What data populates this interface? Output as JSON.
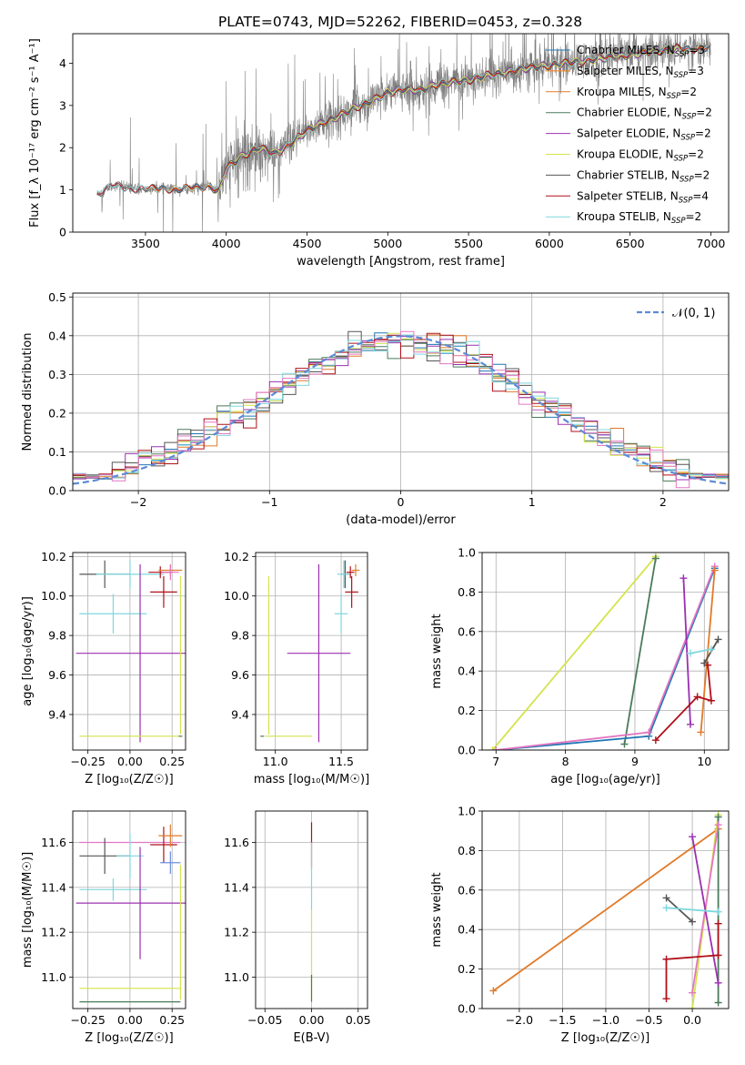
{
  "figure_title": "PLATE=0743, MJD=52262, FIBERID=0453, z=0.328",
  "colors": {
    "data": "#808080",
    "Chabrier MILES": "#1f77b4",
    "Salpeter MILES": "#ff7f0e",
    "Kroupa MILES": "#e07b2a",
    "Chabrier ELODIE": "#4a7a5a",
    "Salpeter ELODIE": "#9b30b0",
    "Kroupa ELODIE": "#d4e44c",
    "Chabrier STELIB": "#555555",
    "Salpeter STELIB": "#b0101a",
    "Kroupa STELIB": "#7fd7df",
    "pink": "#e377c2",
    "blue2": "#6f8fe0",
    "normal_curve": "#5b8bd6"
  },
  "chart_data": [
    {
      "id": "spectrum",
      "type": "line",
      "title": "PLATE=0743, MJD=52262, FIBERID=0453, z=0.328",
      "xlabel": "wavelength [Angstrom, rest frame]",
      "ylabel": "Flux [f_λ 10⁻¹⁷ erg cm⁻² s⁻¹ A⁻¹]",
      "xlim": [
        3050,
        7110
      ],
      "ylim": [
        0,
        4.7
      ],
      "xticks": [
        3500,
        4000,
        4500,
        5000,
        5500,
        6000,
        6500,
        7000
      ],
      "yticks": [
        0,
        1,
        2,
        3,
        4
      ],
      "grid": false,
      "legend_position": "top-right",
      "legend": [
        {
          "name": "Chabrier MILES",
          "label": "Chabrier MILES, N",
          "sub": "SSP",
          "suffix": "=3"
        },
        {
          "name": "Salpeter MILES",
          "label": "Salpeter MILES, N",
          "sub": "SSP",
          "suffix": "=3"
        },
        {
          "name": "Kroupa MILES",
          "label": "Kroupa MILES, N",
          "sub": "SSP",
          "suffix": "=2"
        },
        {
          "name": "Chabrier ELODIE",
          "label": "Chabrier ELODIE, N",
          "sub": "SSP",
          "suffix": "=2"
        },
        {
          "name": "Salpeter ELODIE",
          "label": "Salpeter ELODIE, N",
          "sub": "SSP",
          "suffix": "=2"
        },
        {
          "name": "Kroupa ELODIE",
          "label": "Kroupa ELODIE, N",
          "sub": "SSP",
          "suffix": "=2"
        },
        {
          "name": "Chabrier STELIB",
          "label": "Chabrier STELIB, N",
          "sub": "SSP",
          "suffix": "=2"
        },
        {
          "name": "Salpeter STELIB",
          "label": "Salpeter STELIB, N",
          "sub": "SSP",
          "suffix": "=4"
        },
        {
          "name": "Kroupa STELIB",
          "label": "Kroupa STELIB, N",
          "sub": "SSP",
          "suffix": "=2"
        }
      ],
      "continuum": [
        [
          3200,
          0.9
        ],
        [
          3300,
          1.1
        ],
        [
          3400,
          1.05
        ],
        [
          3500,
          1.0
        ],
        [
          3600,
          1.05
        ],
        [
          3700,
          1.0
        ],
        [
          3800,
          1.05
        ],
        [
          3900,
          1.1
        ],
        [
          3950,
          0.95
        ],
        [
          4000,
          1.5
        ],
        [
          4100,
          1.8
        ],
        [
          4200,
          2.0
        ],
        [
          4300,
          1.85
        ],
        [
          4400,
          2.1
        ],
        [
          4500,
          2.4
        ],
        [
          4600,
          2.6
        ],
        [
          4700,
          2.75
        ],
        [
          4800,
          2.95
        ],
        [
          4900,
          3.1
        ],
        [
          5000,
          3.3
        ],
        [
          5100,
          3.4
        ],
        [
          5200,
          3.35
        ],
        [
          5300,
          3.5
        ],
        [
          5400,
          3.55
        ],
        [
          5500,
          3.6
        ],
        [
          5600,
          3.7
        ],
        [
          5700,
          3.75
        ],
        [
          5800,
          3.85
        ],
        [
          5900,
          3.9
        ],
        [
          6000,
          3.95
        ],
        [
          6100,
          4.0
        ],
        [
          6200,
          4.05
        ],
        [
          6300,
          4.1
        ],
        [
          6400,
          4.15
        ],
        [
          6500,
          4.2
        ],
        [
          6600,
          4.25
        ],
        [
          6700,
          4.3
        ],
        [
          6800,
          4.35
        ],
        [
          6900,
          4.35
        ]
      ],
      "model_start": {
        "Chabrier MILES": 3500,
        "Salpeter MILES": 3500,
        "Kroupa MILES": 3500,
        "Chabrier ELODIE": 3900,
        "Salpeter ELODIE": 3900,
        "Kroupa ELODIE": 3900,
        "Chabrier STELIB": 3200,
        "Salpeter STELIB": 3200,
        "Kroupa STELIB": 3200
      },
      "model_end": {
        "Chabrier MILES": 7000,
        "Salpeter MILES": 7000,
        "Kroupa MILES": 7000,
        "Chabrier ELODIE": 6800,
        "Salpeter ELODIE": 6800,
        "Kroupa ELODIE": 6800,
        "Chabrier STELIB": 7000,
        "Salpeter STELIB": 7000,
        "Kroupa STELIB": 7000
      }
    },
    {
      "id": "residuals",
      "type": "histogram",
      "xlabel": "(data-model)/error",
      "ylabel": "Normed distribution",
      "xlim": [
        -2.5,
        2.5
      ],
      "ylim": [
        0,
        0.51
      ],
      "xticks": [
        -2,
        -1,
        0,
        1,
        2
      ],
      "yticks": [
        0.0,
        0.1,
        0.2,
        0.3,
        0.4,
        0.5
      ],
      "grid": true,
      "legend_position": "top-right",
      "legend": [
        {
          "name": "normal",
          "label": "𝒩(0, 1)"
        }
      ],
      "bin_width": 0.1,
      "bin_range": [
        -2.5,
        2.5
      ]
    },
    {
      "id": "age-vs-Z",
      "type": "scatter",
      "xlabel": "Z [log₁₀(Z/Z☉)]",
      "ylabel": "age  [log₁₀(age/yr)]",
      "xlim": [
        -0.34,
        0.33
      ],
      "ylim": [
        9.22,
        10.22
      ],
      "xticks": [
        -0.25,
        0.0,
        0.25
      ],
      "yticks": [
        9.4,
        9.6,
        9.8,
        10.0,
        10.2
      ],
      "grid": true,
      "points": [
        {
          "series": "Chabrier STELIB",
          "x": -0.15,
          "y": 10.11,
          "xerr": 0.15,
          "yerr": 0.07
        },
        {
          "series": "Kroupa STELIB",
          "x": 0.0,
          "y": 10.11,
          "xerr": 0.2,
          "yerr": 0.07
        },
        {
          "series": "Kroupa STELIB",
          "x": -0.1,
          "y": 9.91,
          "xerr": 0.2,
          "yerr": 0.1
        },
        {
          "series": "Salpeter STELIB",
          "x": 0.2,
          "y": 10.02,
          "xerr": 0.08,
          "yerr": 0.08
        },
        {
          "series": "Salpeter STELIB",
          "x": 0.18,
          "y": 10.12,
          "xerr": 0.07,
          "yerr": 0.03
        },
        {
          "series": "Kroupa MILES",
          "x": 0.24,
          "y": 10.13,
          "xerr": 0.07,
          "yerr": 0.03
        },
        {
          "series": "pink",
          "x": 0.24,
          "y": 10.12,
          "xerr": 0.05,
          "yerr": 0.04
        },
        {
          "series": "Salpeter ELODIE",
          "x": 0.06,
          "y": 9.71,
          "xerr": 0.38,
          "yerr": 0.45
        },
        {
          "series": "Kroupa ELODIE",
          "x": 0.0,
          "y": 9.29,
          "xerr": 0.3,
          "yerr": 0.0
        },
        {
          "series": "Kroupa ELODIE",
          "x": 0.3,
          "y": 9.7,
          "xerr": 0.0,
          "yerr": 0.4
        },
        {
          "series": "Chabrier ELODIE",
          "x": 0.3,
          "y": 9.29,
          "xerr": 0.0,
          "yerr": 0.0
        }
      ]
    },
    {
      "id": "age-vs-mass",
      "type": "scatter",
      "xlabel": "mass [log₁₀(M/M☉)]",
      "ylabel": "",
      "xlim": [
        10.85,
        11.7
      ],
      "ylim": [
        9.22,
        10.22
      ],
      "xticks": [
        11.0,
        11.5
      ],
      "yticks": [
        9.4,
        9.6,
        9.8,
        10.0,
        10.2
      ],
      "grid": true,
      "points": [
        {
          "series": "Chabrier STELIB",
          "x": 11.53,
          "y": 10.11,
          "xerr": 0.03,
          "yerr": 0.07
        },
        {
          "series": "Kroupa STELIB",
          "x": 11.52,
          "y": 10.11,
          "xerr": 0.05,
          "yerr": 0.07
        },
        {
          "series": "Kroupa STELIB",
          "x": 11.5,
          "y": 9.91,
          "xerr": 0.05,
          "yerr": 0.1
        },
        {
          "series": "Salpeter STELIB",
          "x": 11.58,
          "y": 10.02,
          "xerr": 0.05,
          "yerr": 0.08
        },
        {
          "series": "Salpeter STELIB",
          "x": 11.57,
          "y": 10.12,
          "xerr": 0.03,
          "yerr": 0.03
        },
        {
          "series": "Kroupa MILES",
          "x": 11.61,
          "y": 10.13,
          "xerr": 0.03,
          "yerr": 0.03
        },
        {
          "series": "Salpeter ELODIE",
          "x": 11.33,
          "y": 9.71,
          "xerr": 0.24,
          "yerr": 0.45
        },
        {
          "series": "Kroupa ELODIE",
          "x": 10.95,
          "y": 9.7,
          "xerr": 0.0,
          "yerr": 0.4
        },
        {
          "series": "Kroupa ELODIE",
          "x": 11.1,
          "y": 9.29,
          "xerr": 0.18,
          "yerr": 0.0
        },
        {
          "series": "Chabrier ELODIE",
          "x": 10.9,
          "y": 9.29,
          "xerr": 0.0,
          "yerr": 0.0
        }
      ]
    },
    {
      "id": "weight-vs-age",
      "type": "line",
      "xlabel": "age  [log₁₀(age/yr)]",
      "ylabel": "mass weight",
      "xlim": [
        6.8,
        10.35
      ],
      "ylim": [
        0,
        1.0
      ],
      "xticks": [
        7,
        8,
        9,
        10
      ],
      "yticks": [
        0.0,
        0.2,
        0.4,
        0.6,
        0.8,
        1.0
      ],
      "grid": true,
      "series": [
        {
          "name": "Kroupa ELODIE",
          "x": [
            6.95,
            9.3
          ],
          "y": [
            0.0,
            0.98
          ]
        },
        {
          "name": "Chabrier ELODIE",
          "x": [
            8.85,
            9.3
          ],
          "y": [
            0.03,
            0.97
          ]
        },
        {
          "name": "Chabrier MILES",
          "x": [
            7.0,
            9.2,
            10.15
          ],
          "y": [
            0.0,
            0.07,
            0.92
          ]
        },
        {
          "name": "pink",
          "x": [
            7.0,
            9.2,
            10.15
          ],
          "y": [
            0.0,
            0.09,
            0.93
          ]
        },
        {
          "name": "Salpeter ELODIE",
          "x": [
            9.7,
            9.8
          ],
          "y": [
            0.87,
            0.13
          ]
        },
        {
          "name": "Kroupa MILES",
          "x": [
            9.95,
            10.15
          ],
          "y": [
            0.09,
            0.91
          ]
        },
        {
          "name": "Salpeter STELIB",
          "x": [
            9.3,
            9.9,
            10.1,
            10.05
          ],
          "y": [
            0.05,
            0.27,
            0.25,
            0.43
          ]
        },
        {
          "name": "Chabrier STELIB",
          "x": [
            10.0,
            10.2
          ],
          "y": [
            0.44,
            0.56
          ]
        },
        {
          "name": "Kroupa STELIB",
          "x": [
            9.8,
            10.1
          ],
          "y": [
            0.49,
            0.51
          ]
        }
      ]
    },
    {
      "id": "mass-vs-Z",
      "type": "scatter",
      "xlabel": "Z [log₁₀(Z/Z☉)]",
      "ylabel": "mass [log₁₀(M/M☉)]",
      "xlim": [
        -0.34,
        0.33
      ],
      "ylim": [
        10.86,
        11.74
      ],
      "xticks": [
        -0.25,
        0.0,
        0.25
      ],
      "yticks": [
        11.0,
        11.2,
        11.4,
        11.6
      ],
      "grid": true,
      "points": [
        {
          "series": "pink",
          "x": 0.0,
          "y": 11.6,
          "xerr": 0.3,
          "yerr": 0.0
        },
        {
          "series": "Chabrier STELIB",
          "x": -0.15,
          "y": 11.54,
          "xerr": 0.15,
          "yerr": 0.08
        },
        {
          "series": "Kroupa STELIB",
          "x": -0.1,
          "y": 11.39,
          "xerr": 0.2,
          "yerr": 0.05
        },
        {
          "series": "Kroupa STELIB",
          "x": 0.0,
          "y": 11.54,
          "xerr": 0.08,
          "yerr": 0.1
        },
        {
          "series": "Salpeter STELIB",
          "x": 0.2,
          "y": 11.59,
          "xerr": 0.08,
          "yerr": 0.08
        },
        {
          "series": "Kroupa MILES",
          "x": 0.24,
          "y": 11.63,
          "xerr": 0.07,
          "yerr": 0.05
        },
        {
          "series": "blue2",
          "x": 0.24,
          "y": 11.51,
          "xerr": 0.06,
          "yerr": 0.05
        },
        {
          "series": "Salpeter ELODIE",
          "x": 0.06,
          "y": 11.33,
          "xerr": 0.38,
          "yerr": 0.25
        },
        {
          "series": "Kroupa ELODIE",
          "x": 0.0,
          "y": 10.95,
          "xerr": 0.3,
          "yerr": 0.0
        },
        {
          "series": "Kroupa ELODIE",
          "x": 0.3,
          "y": 11.2,
          "xerr": 0.0,
          "yerr": 0.3
        },
        {
          "series": "Chabrier ELODIE",
          "x": 0.0,
          "y": 10.89,
          "xerr": 0.3,
          "yerr": 0.0
        }
      ]
    },
    {
      "id": "mass-vs-ebv",
      "type": "scatter",
      "xlabel": "E(B-V)",
      "ylabel": "",
      "xlim": [
        -0.06,
        0.06
      ],
      "ylim": [
        10.86,
        11.74
      ],
      "xticks": [
        -0.05,
        0.0,
        0.05
      ],
      "xticklabels": [
        "−0.05",
        "0.00",
        "0.05"
      ],
      "yticks": [
        11.0,
        11.2,
        11.4,
        11.6
      ],
      "grid": true,
      "points": [
        {
          "series": "Salpeter STELIB",
          "x": 0.0,
          "y": 11.59,
          "xerr": 0.0,
          "yerr": 0.1
        },
        {
          "series": "Kroupa STELIB",
          "x": 0.0,
          "y": 11.45,
          "xerr": 0.0,
          "yerr": 0.15
        },
        {
          "series": "Kroupa ELODIE",
          "x": 0.0,
          "y": 11.1,
          "xerr": 0.0,
          "yerr": 0.2
        },
        {
          "series": "Chabrier ELODIE",
          "x": 0.0,
          "y": 10.95,
          "xerr": 0.0,
          "yerr": 0.06
        }
      ]
    },
    {
      "id": "weight-vs-Z",
      "type": "line",
      "xlabel": "Z [log₁₀(Z/Z☉)]",
      "ylabel": "mass weight",
      "xlim": [
        -2.43,
        0.42
      ],
      "ylim": [
        0,
        1.0
      ],
      "xticks": [
        -2.0,
        -1.5,
        -1.0,
        -0.5,
        0.0
      ],
      "xticklabels": [
        "−2.0",
        "−1.5",
        "−1.0",
        "−0.5",
        "0.0"
      ],
      "yticks": [
        0.0,
        0.2,
        0.4,
        0.6,
        0.8,
        1.0
      ],
      "grid": true,
      "series": [
        {
          "name": "Kroupa MILES",
          "x": [
            -2.3,
            0.3
          ],
          "y": [
            0.09,
            0.91
          ]
        },
        {
          "name": "Kroupa ELODIE",
          "x": [
            0.0,
            0.3
          ],
          "y": [
            0.0,
            0.98
          ]
        },
        {
          "name": "Chabrier ELODIE",
          "x": [
            0.3,
            0.3
          ],
          "y": [
            0.03,
            0.97
          ]
        },
        {
          "name": "pink",
          "x": [
            0.0,
            0.3
          ],
          "y": [
            0.08,
            0.93
          ]
        },
        {
          "name": "Salpeter ELODIE",
          "x": [
            0.0,
            0.3
          ],
          "y": [
            0.87,
            0.13
          ]
        },
        {
          "name": "Salpeter STELIB",
          "x": [
            -0.3,
            -0.3,
            0.3,
            0.3
          ],
          "y": [
            0.05,
            0.25,
            0.27,
            0.43
          ]
        },
        {
          "name": "Chabrier STELIB",
          "x": [
            -0.3,
            0.0
          ],
          "y": [
            0.56,
            0.44
          ]
        },
        {
          "name": "Kroupa STELIB",
          "x": [
            -0.3,
            0.3
          ],
          "y": [
            0.51,
            0.49
          ]
        }
      ]
    }
  ]
}
